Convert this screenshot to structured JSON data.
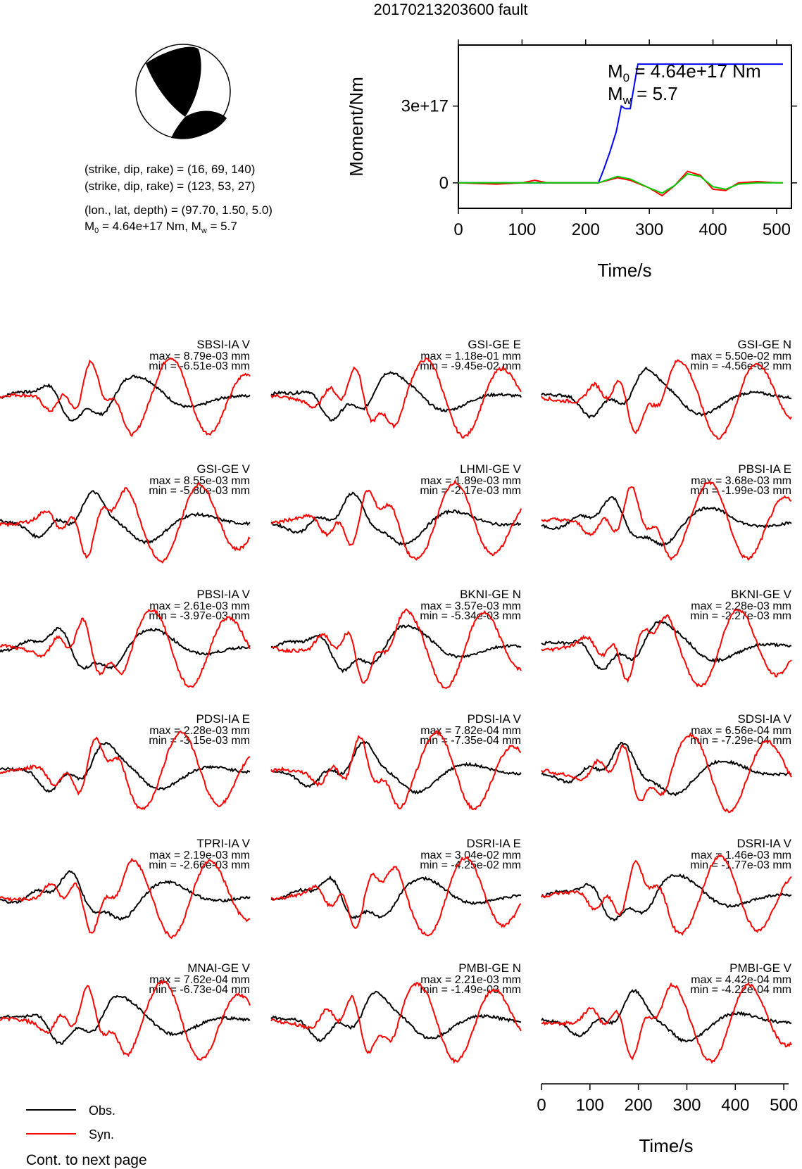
{
  "title": "20170213203600 fault",
  "mechanism": {
    "plane1": "(strike, dip, rake) = (16, 69, 140)",
    "plane2": "(strike, dip, rake) = (123, 53, 27)",
    "location": "(lon., lat, depth) = (97.70, 1.50, 5.0)",
    "m0_prefix": "M",
    "m0_sub": "0",
    "m0_rest": " = 4.64e+17 Nm, M",
    "mw_sub": "w",
    "mw_rest": " = 5.7"
  },
  "moment_panel": {
    "ylabel": "Moment/Nm",
    "xlabel": "Time/s",
    "m0_label_main": "M",
    "m0_label_sub": "0",
    "m0_label_rest": " = 4.64e+17 Nm",
    "mw_label_main": "M",
    "mw_label_sub": "w",
    "mw_label_rest": " = 5.7",
    "ytick_labels": [
      "0",
      "3e+17"
    ],
    "xtick_labels": [
      "0",
      "100",
      "200",
      "300",
      "400",
      "500"
    ]
  },
  "chart_data": [
    {
      "type": "line",
      "title": "",
      "xlabel": "Time/s",
      "ylabel": "Moment/Nm",
      "xlim": [
        0,
        510
      ],
      "ylim": [
        -5e+16,
        5e+17
      ],
      "grid": false,
      "series": [
        {
          "name": "",
          "color": "#0000ff",
          "x": [
            0,
            220,
            228,
            238,
            248,
            256,
            262,
            270,
            272,
            282,
            290,
            510
          ],
          "y": [
            0,
            0,
            5e+16,
            1.2e+17,
            2e+17,
            3e+17,
            2.9e+17,
            2.9e+17,
            3.2e+17,
            4.64e+17,
            4.64e+17,
            4.64e+17
          ]
        },
        {
          "name": "",
          "color": "#ff0000",
          "x": [
            0,
            60,
            100,
            120,
            140,
            180,
            220,
            250,
            270,
            300,
            320,
            340,
            360,
            380,
            400,
            420,
            440,
            470,
            500,
            510
          ],
          "y": [
            0,
            -5000000000000000.0,
            0,
            1e+16,
            0,
            0,
            0,
            2e+16,
            1e+16,
            -2e+16,
            -5e+16,
            -1e+16,
            4.5e+16,
            3e+16,
            -2.5e+16,
            -3e+16,
            0,
            5000000000000000.0,
            0,
            0
          ]
        },
        {
          "name": "",
          "color": "#00cc00",
          "x": [
            0,
            220,
            250,
            270,
            300,
            320,
            340,
            360,
            380,
            400,
            420,
            440,
            470,
            510
          ],
          "y": [
            0,
            0,
            2.5e+16,
            1.5e+16,
            -2e+16,
            -4e+16,
            -1e+16,
            3.5e+16,
            2.5e+16,
            -1.5e+16,
            -2.5e+16,
            -5000000000000000.0,
            0,
            0
          ]
        }
      ]
    },
    {
      "type": "line",
      "title": "",
      "xlabel": "Time/s",
      "xlim": [
        0,
        510
      ],
      "series": [
        {
          "name": "Obs.",
          "color": "#000000"
        },
        {
          "name": "Syn.",
          "color": "#ff0000"
        }
      ],
      "panels": [
        {
          "station": "SBSI-IA V",
          "max": "max = 8.79e-03 mm",
          "min": "min = -6.51e-03 mm"
        },
        {
          "station": "GSI-GE E",
          "max": "max = 1.18e-01 mm",
          "min": "min = -9.45e-02 mm"
        },
        {
          "station": "GSI-GE N",
          "max": "max = 5.50e-02 mm",
          "min": "min = -4.56e-02 mm"
        },
        {
          "station": "GSI-GE V",
          "max": "max = 8.55e-03 mm",
          "min": "min = -5.80e-03 mm"
        },
        {
          "station": "LHMI-GE V",
          "max": "max = 1.89e-03 mm",
          "min": "min = -2.17e-03 mm"
        },
        {
          "station": "PBSI-IA E",
          "max": "max = 3.68e-03 mm",
          "min": "min = -1.99e-03 mm"
        },
        {
          "station": "PBSI-IA V",
          "max": "max = 2.61e-03 mm",
          "min": "min = -3.97e-03 mm"
        },
        {
          "station": "BKNI-GE N",
          "max": "max = 3.57e-03 mm",
          "min": "min = -5.34e-03 mm"
        },
        {
          "station": "BKNI-GE V",
          "max": "max = 2.28e-03 mm",
          "min": "min = -2.27e-03 mm"
        },
        {
          "station": "PDSI-IA E",
          "max": "max = 2.28e-03 mm",
          "min": "min = -3.15e-03 mm"
        },
        {
          "station": "PDSI-IA V",
          "max": "max = 7.82e-04 mm",
          "min": "min = -7.35e-04 mm"
        },
        {
          "station": "SDSI-IA V",
          "max": "max = 6.56e-04 mm",
          "min": "min = -7.29e-04 mm"
        },
        {
          "station": "TPRI-IA V",
          "max": "max = 2.19e-03 mm",
          "min": "min = -2.66e-03 mm"
        },
        {
          "station": "DSRI-IA E",
          "max": "max = 3.04e-02 mm",
          "min": "min = -4.25e-02 mm"
        },
        {
          "station": "DSRI-IA V",
          "max": "max = 1.46e-03 mm",
          "min": "min = -1.77e-03 mm"
        },
        {
          "station": "MNAI-GE V",
          "max": "max = 7.62e-04 mm",
          "min": "min = -6.73e-04 mm"
        },
        {
          "station": "PMBI-GE N",
          "max": "max = 2.21e-03 mm",
          "min": "min = -1.49e-03 mm"
        },
        {
          "station": "PMBI-GE V",
          "max": "max = 4.42e-04 mm",
          "min": "min = -4.22e-04 mm"
        }
      ],
      "xtick_labels": [
        "0",
        "100",
        "200",
        "300",
        "400",
        "500"
      ]
    }
  ],
  "legend": {
    "obs_label": "Obs.",
    "syn_label": "Syn.",
    "obs_color": "#000000",
    "syn_color": "#ff0000"
  },
  "footer": {
    "continue_label": "Cont. to next page"
  }
}
